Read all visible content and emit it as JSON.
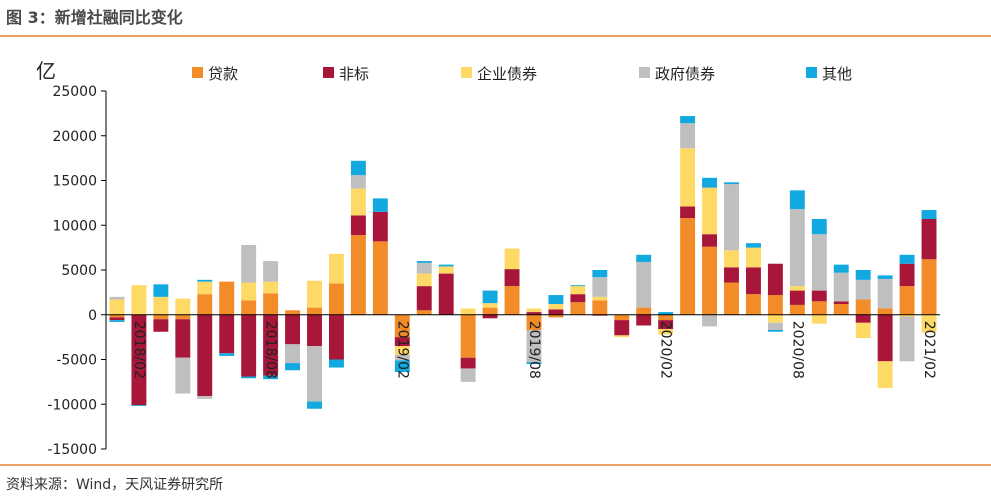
{
  "header": {
    "title": "图 3：新增社融同比变化"
  },
  "footer": {
    "source": "资料来源：Wind，天风证券研究所"
  },
  "chart_data": {
    "type": "bar",
    "stacked": true,
    "unit": "亿",
    "ylim": [
      -15000,
      25000
    ],
    "yticks": [
      25000,
      20000,
      15000,
      10000,
      5000,
      0,
      -5000,
      -10000,
      -15000
    ],
    "grid": false,
    "legend_position": "top",
    "colors": {
      "贷款": "#f28c28",
      "非标": "#a8173a",
      "企业债券": "#ffd966",
      "政府债券": "#bfbfbf",
      "其他": "#12a9e0"
    },
    "categories": [
      "2018/01",
      "2018/02",
      "2018/03",
      "2018/04",
      "2018/05",
      "2018/06",
      "2018/07",
      "2018/08",
      "2018/09",
      "2018/10",
      "2018/11",
      "2018/12",
      "2019/01",
      "2019/02",
      "2019/03",
      "2019/04",
      "2019/05",
      "2019/06",
      "2019/07",
      "2019/08",
      "2019/09",
      "2019/10",
      "2019/11",
      "2019/12",
      "2020/01",
      "2020/02",
      "2020/03",
      "2020/04",
      "2020/05",
      "2020/06",
      "2020/07",
      "2020/08",
      "2020/09",
      "2020/10",
      "2020/11",
      "2020/12",
      "2021/01",
      "2021/02"
    ],
    "xtick_labels": [
      {
        "index": 1,
        "label": "2018/02"
      },
      {
        "index": 7,
        "label": "2018/08"
      },
      {
        "index": 13,
        "label": "2019/02"
      },
      {
        "index": 19,
        "label": "2019/08"
      },
      {
        "index": 25,
        "label": "2020/02"
      },
      {
        "index": 31,
        "label": "2020/08"
      },
      {
        "index": 37,
        "label": "2021/02"
      }
    ],
    "series": [
      {
        "name": "贷款",
        "values": [
          -300,
          0,
          -500,
          -500,
          2300,
          3700,
          1600,
          2400,
          500,
          800,
          3500,
          8900,
          8200,
          -2500,
          500,
          0,
          -4800,
          800,
          3200,
          -1700,
          -300,
          1400,
          1600,
          -600,
          800,
          -600,
          10800,
          7600,
          3600,
          2300,
          2200,
          1100,
          1500,
          1200,
          1700,
          700,
          3200,
          6200
        ]
      },
      {
        "name": "非标",
        "values": [
          -300,
          -10100,
          -1400,
          -4300,
          -9100,
          -4300,
          -6900,
          -6800,
          -3300,
          -3500,
          -5000,
          2200,
          3300,
          -1000,
          2700,
          4600,
          -1200,
          -400,
          1900,
          300,
          600,
          900,
          -100,
          -1700,
          -1200,
          -1000,
          1300,
          1400,
          1700,
          3000,
          3500,
          1600,
          1200,
          300,
          -900,
          -5200,
          2500,
          4500
        ]
      },
      {
        "name": "企业债券",
        "values": [
          1700,
          3300,
          2000,
          1800,
          1400,
          0,
          2000,
          1300,
          0,
          3000,
          3300,
          3000,
          0,
          -1000,
          1400,
          800,
          700,
          500,
          2300,
          400,
          600,
          900,
          400,
          -200,
          0,
          -600,
          6500,
          5200,
          1900,
          2200,
          -900,
          500,
          -1000,
          0,
          -1700,
          -3000,
          -200,
          -2000
        ]
      },
      {
        "name": "政府债券",
        "values": [
          300,
          0,
          0,
          -4000,
          -300,
          0,
          4200,
          2300,
          -2100,
          -6200,
          0,
          1500,
          0,
          -600,
          1200,
          0,
          -1500,
          0,
          0,
          -3600,
          0,
          0,
          2200,
          0,
          5100,
          0,
          2800,
          -1300,
          7400,
          0,
          -800,
          8600,
          6300,
          3200,
          2200,
          3300,
          -5000,
          0
        ]
      },
      {
        "name": "其他",
        "values": [
          -200,
          -100,
          1400,
          0,
          200,
          -300,
          -200,
          -400,
          -800,
          -800,
          -900,
          1600,
          1500,
          -1300,
          200,
          200,
          0,
          1400,
          0,
          -200,
          1000,
          100,
          800,
          0,
          800,
          300,
          800,
          1100,
          200,
          500,
          -200,
          2100,
          1700,
          900,
          1100,
          400,
          1000,
          1000
        ]
      }
    ]
  }
}
